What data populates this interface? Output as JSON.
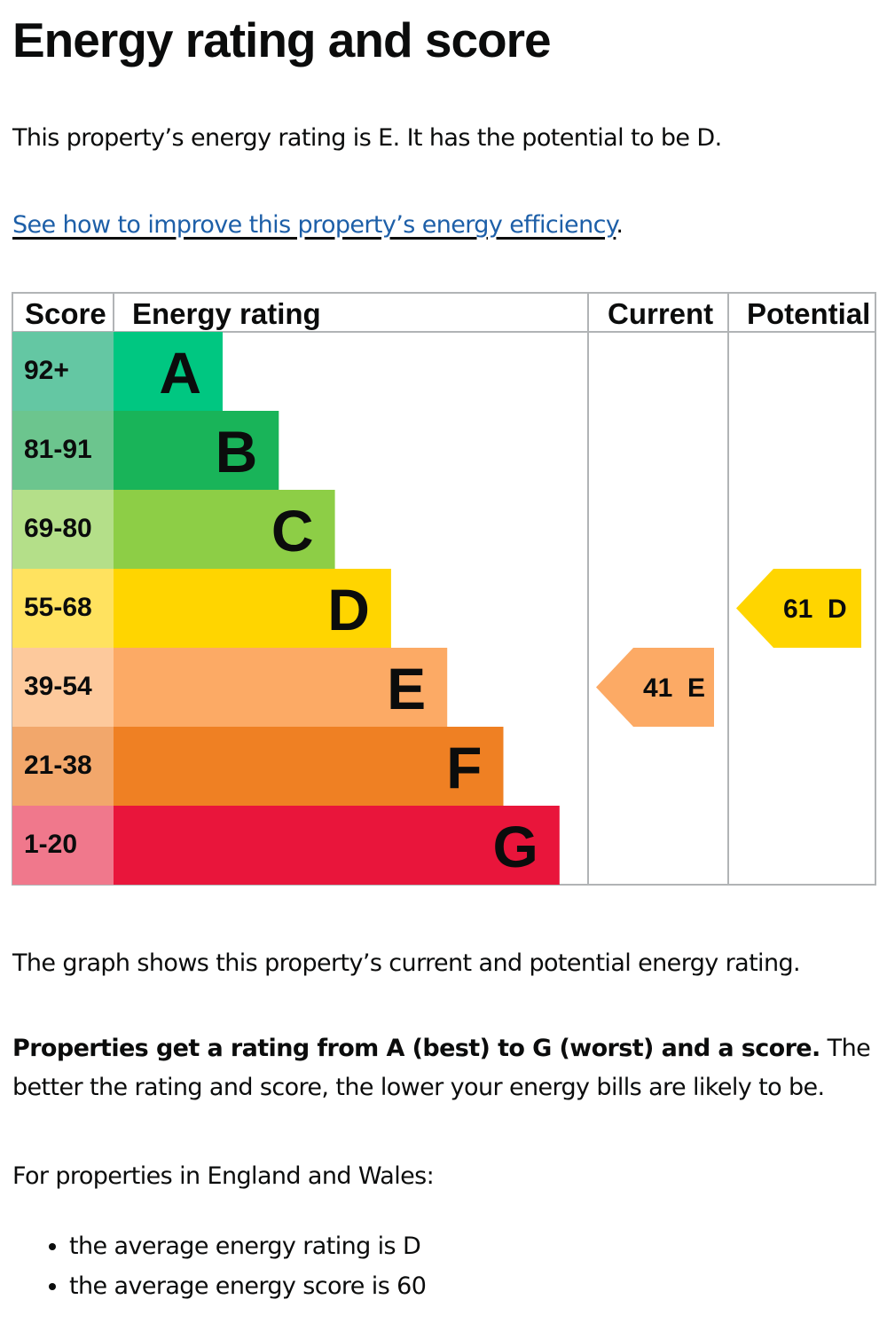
{
  "page": {
    "heading": "Energy rating and score",
    "intro": "This property’s energy rating is E. It has the potential to be D.",
    "link_text": "See how to improve this property’s energy efficiency",
    "link_suffix": ".",
    "graph_description": "The graph shows this property’s current and potential energy rating.",
    "rating_explanation_bold": "Properties get a rating from A (best) to G (worst) and a score.",
    "rating_explanation_rest": " The better the rating and score, the lower your energy bills are likely to be.",
    "region_intro": "For properties in England and Wales:",
    "averages": [
      "the average energy rating is D",
      "the average energy score is 60"
    ]
  },
  "chart_data": {
    "type": "bar",
    "headers": {
      "score": "Score",
      "rating": "Energy rating",
      "current": "Current",
      "potential": "Potential"
    },
    "bands": [
      {
        "letter": "A",
        "range": "92+",
        "color": "#00c781",
        "score_color": "#64c7a3"
      },
      {
        "letter": "B",
        "range": "81-91",
        "color": "#19b459",
        "score_color": "#6cc58e"
      },
      {
        "letter": "C",
        "range": "69-80",
        "color": "#8dce46",
        "score_color": "#b4df89"
      },
      {
        "letter": "D",
        "range": "55-68",
        "color": "#ffd500",
        "score_color": "#ffe25f"
      },
      {
        "letter": "E",
        "range": "39-54",
        "color": "#fcaa65",
        "score_color": "#fdc99c"
      },
      {
        "letter": "F",
        "range": "21-38",
        "color": "#ef8023",
        "score_color": "#f2a76b"
      },
      {
        "letter": "G",
        "range": "1-20",
        "color": "#e9153b",
        "score_color": "#f0788c"
      }
    ],
    "current": {
      "score": 41,
      "letter": "E",
      "label": "41  E"
    },
    "potential": {
      "score": 61,
      "letter": "D",
      "label": "61  D"
    }
  }
}
